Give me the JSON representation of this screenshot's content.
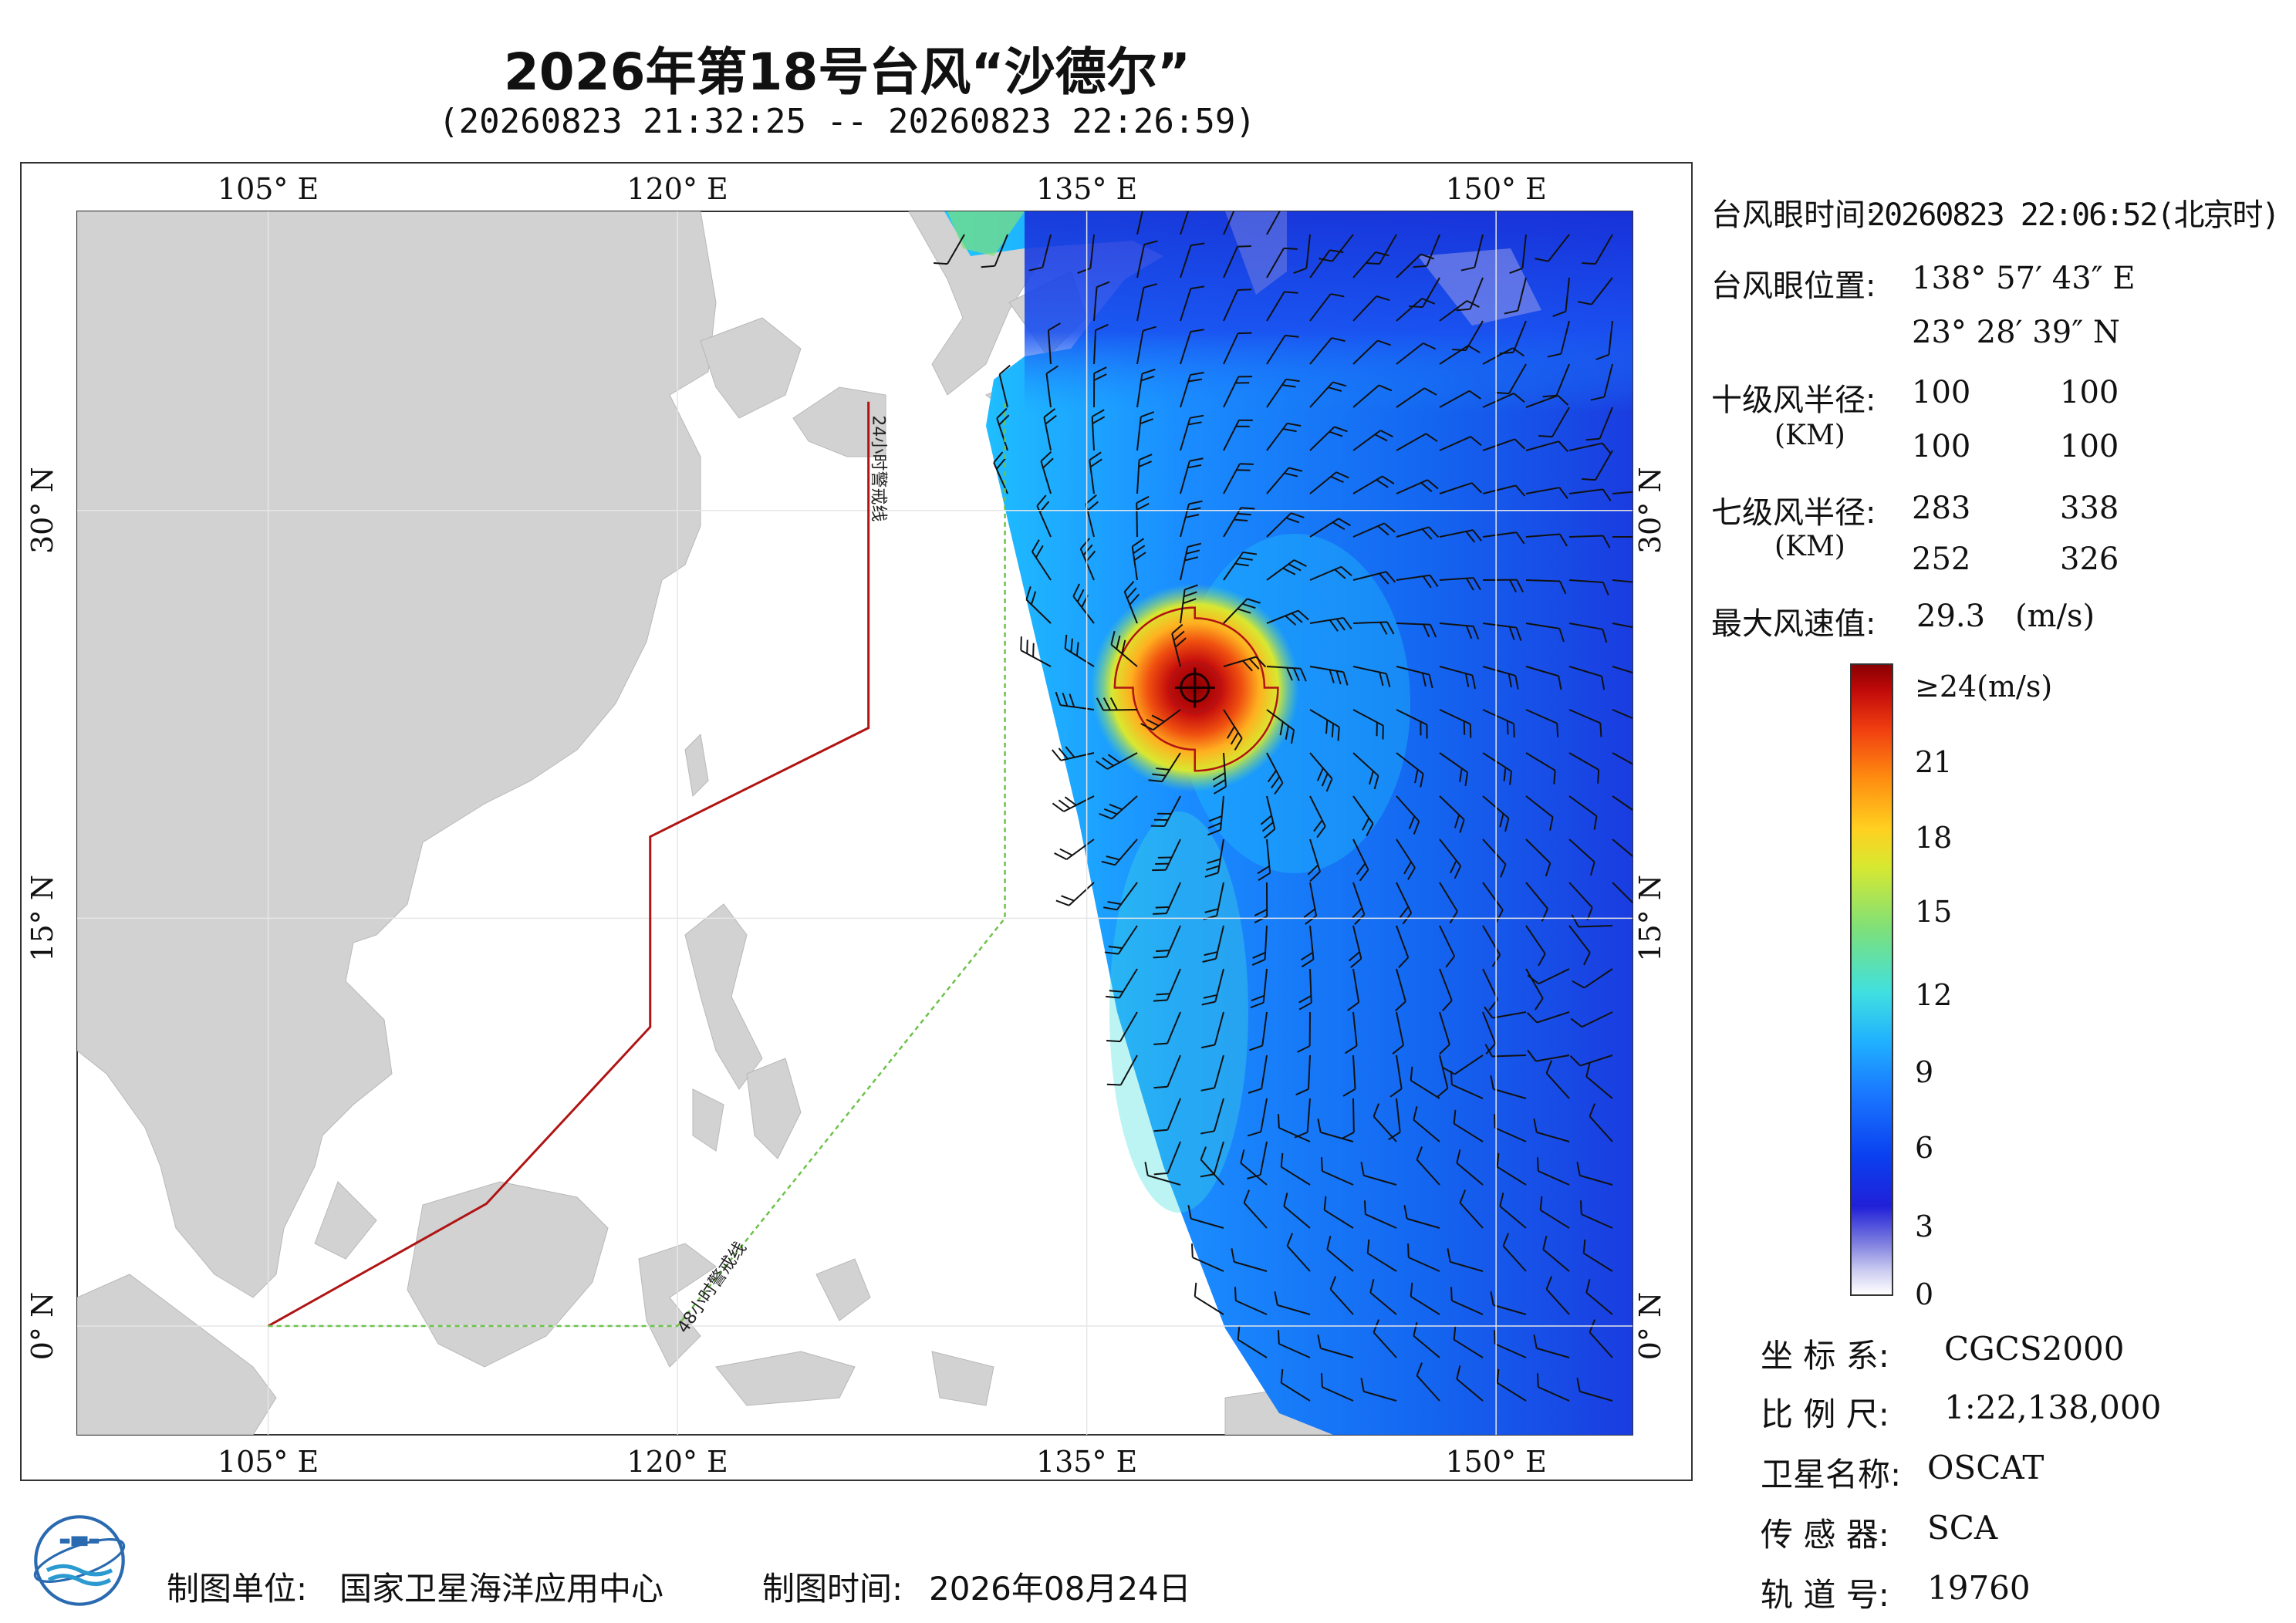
{
  "title": "2026年第18号台风“沙德尔”",
  "subtitle": "(20260823 21:32:25 -- 20260823 22:26:59)",
  "map": {
    "lon_labels": [
      "105° E",
      "120° E",
      "135° E",
      "150° E"
    ],
    "lat_labels": [
      "30° N",
      "15° N",
      "0° N"
    ],
    "warn_24h": "24小时警戒线",
    "warn_48h": "48小时警戒线",
    "extent": {
      "lon_min": 98,
      "lon_max": 155,
      "lat_min": -4,
      "lat_max": 41
    },
    "eye": {
      "lon": 138.962,
      "lat": 23.478
    },
    "colors": {
      "land": "#d2d2d2",
      "warn24": "#b01414",
      "warn48": "#6cc24a"
    }
  },
  "info": {
    "eye_time_label": "台风眼时间:",
    "eye_time_value": "20260823 22:06:52(北京时)",
    "eye_pos_label": "台风眼位置:",
    "eye_lon": "138° 57′ 43″ E",
    "eye_lat": "23° 28′ 39″ N",
    "r10_label": "十级风半径:",
    "r10_unit": "(KM)",
    "r10_values": [
      "100",
      "100",
      "100",
      "100"
    ],
    "r7_label": "七级风半径:",
    "r7_unit": "(KM)",
    "r7_values": [
      "283",
      "338",
      "252",
      "326"
    ],
    "max_wind_label": "最大风速值:",
    "max_wind_value": "29.3",
    "max_wind_unit": "(m/s)"
  },
  "colorbar": {
    "ticks": [
      "≥24(m/s)",
      "21",
      "18",
      "15",
      "12",
      "9",
      "6",
      "3",
      "0"
    ]
  },
  "meta": {
    "crs_label": "坐 标 系:",
    "crs_value": "CGCS2000",
    "scale_label": "比 例 尺:",
    "scale_value": "1:22,138,000",
    "sat_label": "卫星名称:",
    "sat_value": "OSCAT",
    "sensor_label": "传 感 器:",
    "sensor_value": "SCA",
    "orbit_label": "轨 道 号:",
    "orbit_value": "19760"
  },
  "footer": {
    "unit_label": "制图单位:",
    "unit_value": "国家卫星海洋应用中心",
    "time_label": "制图时间:",
    "time_value": "2026年08月24日"
  }
}
